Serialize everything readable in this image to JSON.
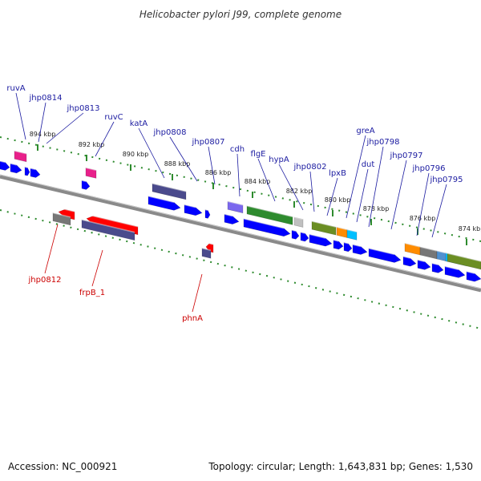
{
  "title": "Helicobacter pylori J99, complete genome",
  "footer": {
    "accession": "Accession: NC_000921",
    "summary": "Topology: circular; Length: 1,643,831 bp; Genes: 1,530"
  },
  "ticks": [
    "894 kbp",
    "892 kbp",
    "890 kbp",
    "888 kbp",
    "886 kbp",
    "884 kbp",
    "882 kbp",
    "880 kbp",
    "878 kbp",
    "876 kbp",
    "874 kbp"
  ],
  "forward_labels": [
    "ruvA",
    "jhp0814",
    "jhp0813",
    "ruvC",
    "katA",
    "jhp0808",
    "jhp0807",
    "cdh",
    "flgE",
    "hypA",
    "jhp0802",
    "lpxB",
    "greA",
    "dut",
    "jhp0798",
    "jhp0797",
    "jhp0796",
    "jhp0795"
  ],
  "reverse_labels": [
    "jhp0812",
    "frpB_1",
    "phnA"
  ],
  "colors": {
    "cds": "#0000ff",
    "backbone": "#808080",
    "tick": "#2e8b2e",
    "fwd_label": "#1a1aa0",
    "rev_label": "#cc0000",
    "magenta": "#e8208a",
    "red": "#ff0000",
    "slate": "#4a4a8c",
    "olive": "#6b8e23",
    "green": "#2e8b2e",
    "orange": "#ff8c00",
    "cyan": "#00bfff",
    "gray": "#777777",
    "lightgray": "#c0c0c0",
    "lavender": "#7b68ee"
  }
}
